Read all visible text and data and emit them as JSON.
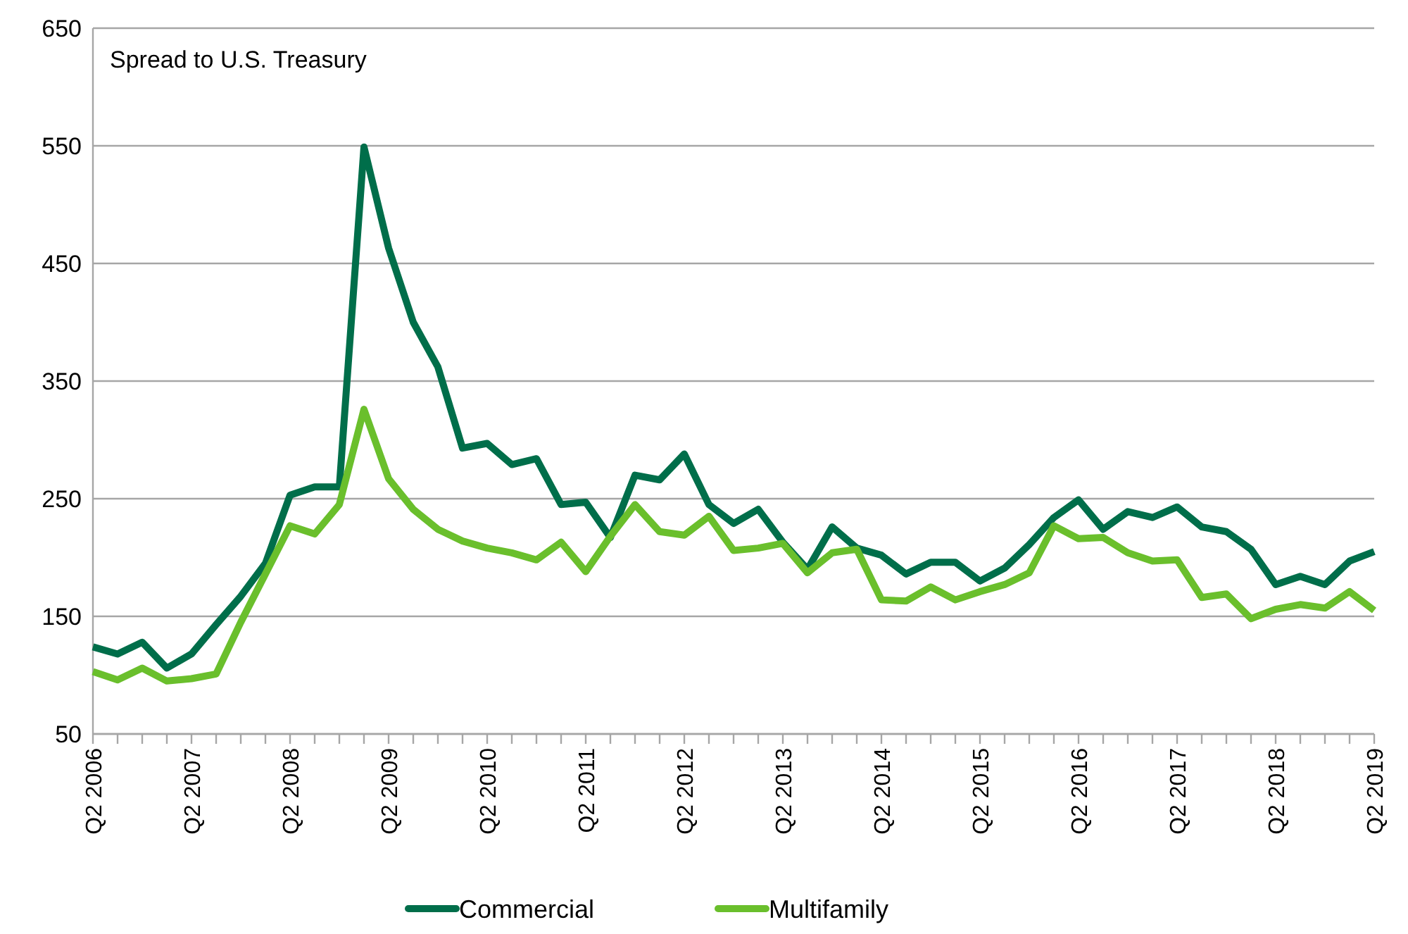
{
  "chart_data": {
    "type": "line",
    "title": "Spread to U.S. Treasury",
    "categories": [
      "Q2 2006",
      null,
      null,
      null,
      "Q2 2007",
      null,
      null,
      null,
      "Q2 2008",
      null,
      null,
      null,
      "Q2 2009",
      null,
      null,
      null,
      "Q2 2010",
      null,
      null,
      null,
      "Q2 2011",
      null,
      null,
      null,
      "Q2 2012",
      null,
      null,
      null,
      "Q2 2013",
      null,
      null,
      null,
      "Q2 2014",
      null,
      null,
      null,
      "Q2 2015",
      null,
      null,
      null,
      "Q2 2016",
      null,
      null,
      null,
      "Q2 2017",
      null,
      null,
      null,
      "Q2 2018",
      null,
      null,
      null,
      "Q2 2019"
    ],
    "series": [
      {
        "name": "Commercial",
        "color": "#006e4a",
        "values": [
          124,
          118,
          128,
          106,
          118,
          143,
          167,
          195,
          253,
          260,
          260,
          549,
          463,
          400,
          362,
          293,
          297,
          279,
          284,
          245,
          247,
          217,
          270,
          266,
          288,
          245,
          229,
          241,
          213,
          190,
          226,
          208,
          202,
          186,
          196,
          196,
          180,
          191,
          211,
          234,
          249,
          224,
          239,
          234,
          243,
          226,
          222,
          207,
          177,
          184,
          177,
          197,
          205
        ]
      },
      {
        "name": "Multifamily",
        "color": "#6abf2c",
        "values": [
          103,
          96,
          106,
          95,
          97,
          101,
          145,
          186,
          227,
          220,
          245,
          326,
          267,
          241,
          224,
          214,
          208,
          204,
          198,
          213,
          188,
          218,
          245,
          222,
          219,
          235,
          206,
          208,
          212,
          187,
          204,
          207,
          164,
          163,
          175,
          164,
          171,
          177,
          187,
          227,
          216,
          217,
          204,
          197,
          198,
          166,
          169,
          148,
          156,
          160,
          157,
          171,
          155
        ]
      }
    ],
    "ylim": [
      50,
      650
    ],
    "yticks": [
      50,
      150,
      250,
      350,
      450,
      550,
      650
    ],
    "grid": "y",
    "legend": "bottom",
    "marker": "none",
    "line_style": "solid"
  }
}
